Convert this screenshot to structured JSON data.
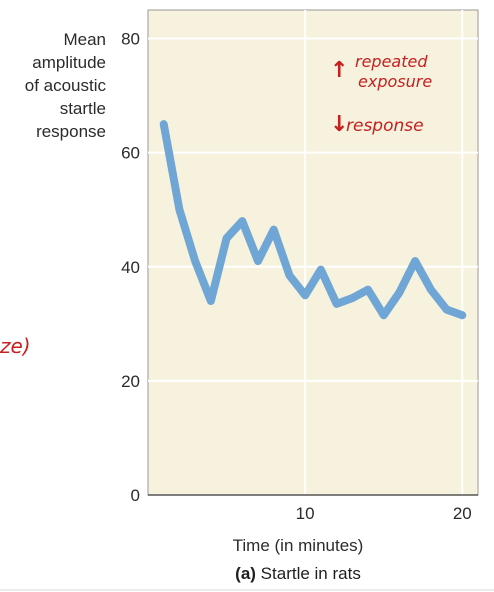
{
  "chart_data": {
    "type": "line",
    "ylabel_lines": [
      "Mean",
      "amplitude",
      "of acoustic",
      "startle",
      "response"
    ],
    "xlabel": "Time (in minutes)",
    "caption_prefix": "(a)",
    "caption_text": "Startle in rats",
    "xlim": [
      0,
      21
    ],
    "ylim": [
      0,
      85
    ],
    "yticks": [
      0,
      20,
      40,
      60,
      80
    ],
    "xticks": [
      10,
      20
    ],
    "grid": true,
    "series": [
      {
        "color": "#6fa6d6",
        "points": [
          [
            1,
            65
          ],
          [
            2,
            50
          ],
          [
            3,
            41
          ],
          [
            4,
            34
          ],
          [
            5,
            45
          ],
          [
            6,
            48
          ],
          [
            7,
            41
          ],
          [
            8,
            46.5
          ],
          [
            9,
            38.5
          ],
          [
            10,
            35
          ],
          [
            11,
            39.5
          ],
          [
            12,
            33.5
          ],
          [
            13,
            34.5
          ],
          [
            14,
            36
          ],
          [
            15,
            31.5
          ],
          [
            16,
            35.5
          ],
          [
            17,
            41
          ],
          [
            18,
            36
          ],
          [
            19,
            32.5
          ],
          [
            20,
            31.5
          ]
        ]
      }
    ],
    "plot_background": "#f6f2de"
  },
  "annotations": {
    "line1": "repeated",
    "line2": "exposure",
    "line3": "response",
    "partial": "ze)",
    "up_arrow": "↑",
    "down_arrow": "↓"
  }
}
